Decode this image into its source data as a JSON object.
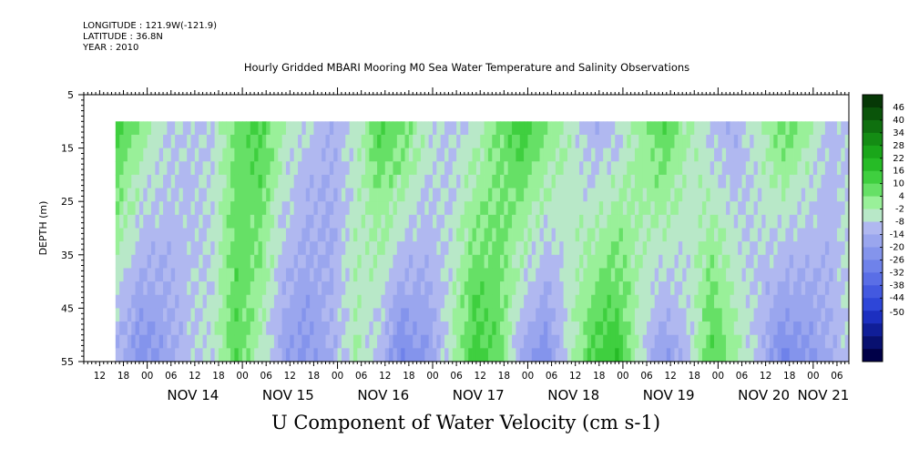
{
  "header": {
    "longitude": "LONGITUDE : 121.9W(-121.9)",
    "latitude": "LATITUDE : 36.8N",
    "year": "YEAR : 2010"
  },
  "title": "Hourly Gridded MBARI Mooring M0 Sea Water Temperature and Salinity Observations",
  "caption": "U Component of Water Velocity (cm s-1)",
  "chart_data": {
    "type": "heatmap",
    "title": "Hourly Gridded MBARI Mooring M0 Sea Water Temperature and Salinity Observations",
    "ylabel": "DEPTH (m)",
    "xlabel": "U Component of Water Velocity (cm s-1)",
    "y_range": [
      5,
      55
    ],
    "y_inverted": true,
    "y_ticks": [
      5,
      15,
      25,
      35,
      45,
      55
    ],
    "data_depth_range": [
      10,
      55
    ],
    "x_range": [
      "2010-11-13T08:00",
      "2010-11-21T09:00"
    ],
    "data_time_range": [
      "2010-11-13T16:00",
      "2010-11-21T08:00"
    ],
    "x_hour_labels": [
      "12",
      "18",
      "00",
      "06",
      "12",
      "18",
      "00",
      "06",
      "12",
      "18",
      "00",
      "06",
      "12",
      "18",
      "00",
      "06",
      "12",
      "18",
      "00",
      "06",
      "12",
      "18",
      "00",
      "06",
      "12",
      "18",
      "00",
      "06",
      "12",
      "18",
      "00",
      "06"
    ],
    "x_day_labels": [
      "NOV 14",
      "NOV 15",
      "NOV 16",
      "NOV 17",
      "NOV 18",
      "NOV 19",
      "NOV 20",
      "NOV 21"
    ],
    "colorbar_levels": [
      "46",
      "40",
      "34",
      "28",
      "22",
      "16",
      "10",
      "4",
      "-2",
      "-8",
      "-14",
      "-20",
      "-26",
      "-32",
      "-38",
      "-44",
      "-50"
    ],
    "colorbar_colors": [
      "#063806",
      "#0a540a",
      "#0f700f",
      "#148c14",
      "#1aa61a",
      "#26bb26",
      "#3fcf3f",
      "#66e066",
      "#99f099",
      "#b8e8c8",
      "#b0b8f0",
      "#9aa6ee",
      "#8494ec",
      "#6f82ea",
      "#5a6ee6",
      "#4359e0",
      "#2e46d8",
      "#1c2fc0",
      "#101e98",
      "#081070",
      "#000048"
    ],
    "time_profile_hourly_start": "2010-11-13T16:00",
    "time_profile_step_hours": 6,
    "u_surface_10m": [
      12,
      2,
      -6,
      -10,
      -8,
      6,
      12,
      -2,
      -8,
      -14,
      -6,
      10,
      8,
      -4,
      -10,
      -6,
      4,
      14,
      6,
      -4,
      -14,
      -10,
      2,
      10,
      -2,
      -10,
      -14,
      -4,
      8,
      0,
      -10,
      -6,
      4
    ],
    "u_bottom_55m": [
      -14,
      -24,
      -18,
      -10,
      -6,
      10,
      -4,
      -18,
      -22,
      -14,
      -2,
      -12,
      -26,
      -20,
      -4,
      14,
      8,
      -16,
      -24,
      -6,
      12,
      16,
      -6,
      -20,
      -10,
      12,
      0,
      -12,
      -26,
      -22,
      -14,
      -4,
      6
    ],
    "colors": {
      "background": "#ffffff",
      "nodata": "#ffffff",
      "axis": "#000000"
    }
  }
}
